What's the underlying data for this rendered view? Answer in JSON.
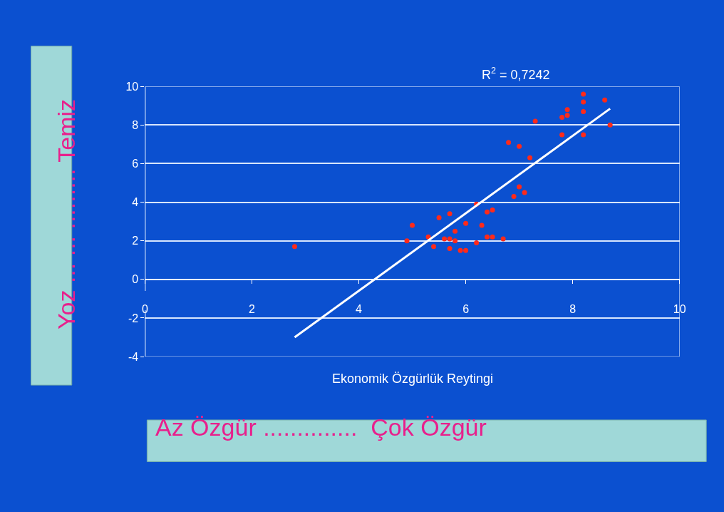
{
  "chart_data": {
    "type": "scatter",
    "xlabel": "Ekonomik Özgürlük Reytingi",
    "ylabel": "Yoz ... ... ......... Temiz",
    "annotations": [
      "Az Özgür ..............  Çok Özgür",
      "R$^{2}$ = 0,7242"
    ],
    "xlim": [
      0,
      10
    ],
    "xticks": [
      0,
      2,
      4,
      6,
      8,
      10
    ],
    "ylim": [
      -4,
      10
    ],
    "yticks": [
      -4,
      -2,
      0,
      2,
      4,
      6,
      8,
      10
    ],
    "grid": "y",
    "marker": "circle",
    "series": [
      {
        "color": "#ff2a1a",
        "x": [
          2.8,
          4.9,
          5.0,
          5.3,
          5.4,
          5.5,
          5.7,
          5.6,
          5.7,
          5.8,
          5.8,
          5.7,
          5.9,
          6.0,
          6.0,
          6.2,
          6.2,
          6.3,
          6.4,
          6.5,
          6.4,
          6.5,
          6.7,
          6.8,
          7.0,
          7.2,
          7.3,
          7.8,
          7.9,
          7.9,
          7.8,
          8.2,
          8.2,
          8.2,
          8.2,
          8.6,
          8.7,
          7.0,
          7.1,
          6.9
        ],
        "values": [
          1.7,
          2.0,
          2.8,
          2.2,
          1.7,
          3.2,
          3.4,
          2.1,
          2.1,
          2.0,
          2.5,
          1.6,
          1.5,
          1.5,
          2.9,
          3.9,
          1.9,
          2.8,
          3.5,
          3.6,
          2.2,
          2.2,
          2.1,
          7.1,
          6.9,
          6.3,
          8.2,
          8.4,
          8.5,
          8.8,
          7.5,
          9.6,
          9.2,
          8.7,
          7.5,
          9.3,
          8.0,
          4.8,
          4.5,
          4.3
        ]
      },
      {
        "type": "line",
        "color": "#ffffff",
        "marker": "none",
        "x": [
          2.8,
          8.7
        ],
        "values": [
          -3.0,
          8.85
        ]
      }
    ]
  }
}
